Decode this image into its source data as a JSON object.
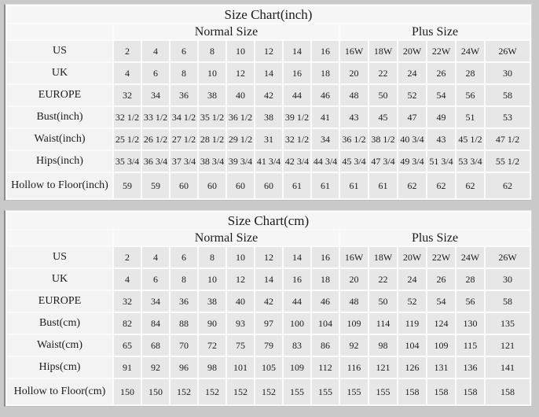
{
  "page": {
    "background_color": "#c9c9c9",
    "grid_line_color": "#fbfbfb",
    "header_bg_color": "#f6f6f6",
    "label_bg_color": "#f3f3f3",
    "cell_bg_color": "#e7e7e7",
    "text_color": "#1c1c1c"
  },
  "chart_data": [
    {
      "type": "table",
      "title": "Size Chart(inch)",
      "group_headers": [
        "Normal Size",
        "Plus Size"
      ],
      "rows": [
        {
          "label": "US",
          "normal": [
            "2",
            "4",
            "6",
            "8",
            "10",
            "12",
            "14",
            "16"
          ],
          "plus": [
            "16W",
            "18W",
            "20W",
            "22W",
            "24W",
            "26W"
          ]
        },
        {
          "label": "UK",
          "normal": [
            "4",
            "6",
            "8",
            "10",
            "12",
            "14",
            "16",
            "18"
          ],
          "plus": [
            "20",
            "22",
            "24",
            "26",
            "28",
            "30"
          ]
        },
        {
          "label": "EUROPE",
          "normal": [
            "32",
            "34",
            "36",
            "38",
            "40",
            "42",
            "44",
            "46"
          ],
          "plus": [
            "48",
            "50",
            "52",
            "54",
            "56",
            "58"
          ]
        },
        {
          "label": "Bust(inch)",
          "normal": [
            "32 1/2",
            "33 1/2",
            "34 1/2",
            "35 1/2",
            "36 1/2",
            "38",
            "39 1/2",
            "41"
          ],
          "plus": [
            "43",
            "45",
            "47",
            "49",
            "51",
            "53"
          ]
        },
        {
          "label": "Waist(inch)",
          "normal": [
            "25 1/2",
            "26 1/2",
            "27 1/2",
            "28 1/2",
            "29 1/2",
            "31",
            "32 1/2",
            "34"
          ],
          "plus": [
            "36 1/2",
            "38 1/2",
            "40 3/4",
            "43",
            "45 1/2",
            "47 1/2"
          ]
        },
        {
          "label": "Hips(inch)",
          "normal": [
            "35 3/4",
            "36 3/4",
            "37 3/4",
            "38 3/4",
            "39 3/4",
            "41 3/4",
            "42 3/4",
            "44 3/4"
          ],
          "plus": [
            "45 3/4",
            "47 3/4",
            "49 3/4",
            "51 3/4",
            "53 3/4",
            "55 1/2"
          ]
        },
        {
          "label": "Hollow to Floor(inch)",
          "normal": [
            "59",
            "59",
            "60",
            "60",
            "60",
            "60",
            "61",
            "61"
          ],
          "plus": [
            "61",
            "61",
            "62",
            "62",
            "62",
            "62"
          ]
        }
      ]
    },
    {
      "type": "table",
      "title": "Size Chart(cm)",
      "group_headers": [
        "Normal Size",
        "Plus Size"
      ],
      "rows": [
        {
          "label": "US",
          "normal": [
            "2",
            "4",
            "6",
            "8",
            "10",
            "12",
            "14",
            "16"
          ],
          "plus": [
            "16W",
            "18W",
            "20W",
            "22W",
            "24W",
            "26W"
          ]
        },
        {
          "label": "UK",
          "normal": [
            "4",
            "6",
            "8",
            "10",
            "12",
            "14",
            "16",
            "18"
          ],
          "plus": [
            "20",
            "22",
            "24",
            "26",
            "28",
            "30"
          ]
        },
        {
          "label": "EUROPE",
          "normal": [
            "32",
            "34",
            "36",
            "38",
            "40",
            "42",
            "44",
            "46"
          ],
          "plus": [
            "48",
            "50",
            "52",
            "54",
            "56",
            "58"
          ]
        },
        {
          "label": "Bust(cm)",
          "normal": [
            "82",
            "84",
            "88",
            "90",
            "93",
            "97",
            "100",
            "104"
          ],
          "plus": [
            "109",
            "114",
            "119",
            "124",
            "130",
            "135"
          ]
        },
        {
          "label": "Waist(cm)",
          "normal": [
            "65",
            "68",
            "70",
            "72",
            "75",
            "79",
            "83",
            "86"
          ],
          "plus": [
            "92",
            "98",
            "104",
            "109",
            "115",
            "121"
          ]
        },
        {
          "label": "Hips(cm)",
          "normal": [
            "91",
            "92",
            "96",
            "98",
            "101",
            "105",
            "109",
            "112"
          ],
          "plus": [
            "116",
            "121",
            "126",
            "131",
            "136",
            "141"
          ]
        },
        {
          "label": "Hollow to Floor(cm)",
          "normal": [
            "150",
            "150",
            "152",
            "152",
            "152",
            "152",
            "155",
            "155"
          ],
          "plus": [
            "155",
            "155",
            "158",
            "158",
            "158",
            "158"
          ]
        }
      ]
    }
  ]
}
